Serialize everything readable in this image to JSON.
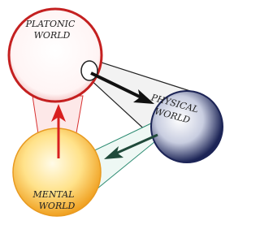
{
  "nodes": [
    {
      "label": [
        "PLATONIC",
        "WORLD"
      ]
    },
    {
      "label": [
        "PHYSICAL",
        "WORLD"
      ]
    },
    {
      "label": [
        "MENTAL",
        "WORLD"
      ]
    }
  ]
}
